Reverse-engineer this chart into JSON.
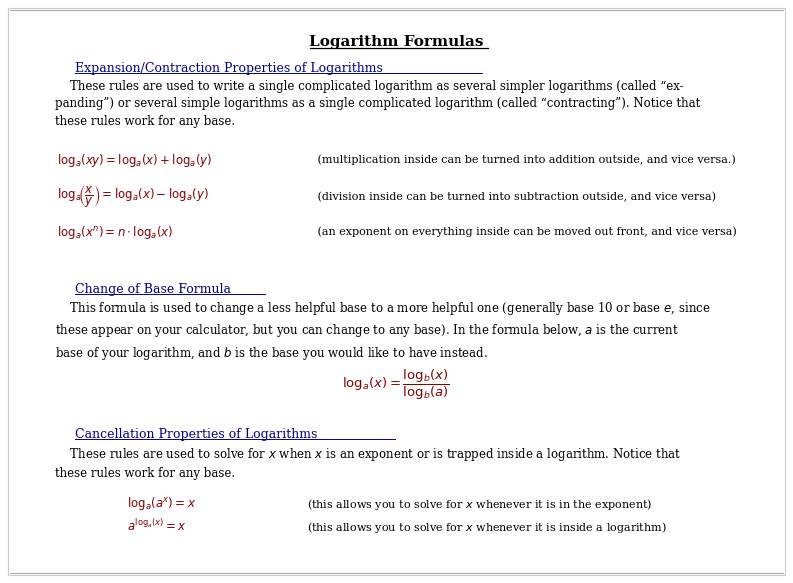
{
  "title": "Logarithm Formulas",
  "bg_color": "#ffffff",
  "text_color": "#000000",
  "dark_red": "#8B0000",
  "blue_heading": "#00008B",
  "section1_heading": "Expansion/Contraction Properties of Logarithms",
  "section2_heading": "Change of Base Formula",
  "section3_heading": "Cancellation Properties of Logarithms",
  "fig_width": 7.93,
  "fig_height": 5.83,
  "dpi": 100
}
